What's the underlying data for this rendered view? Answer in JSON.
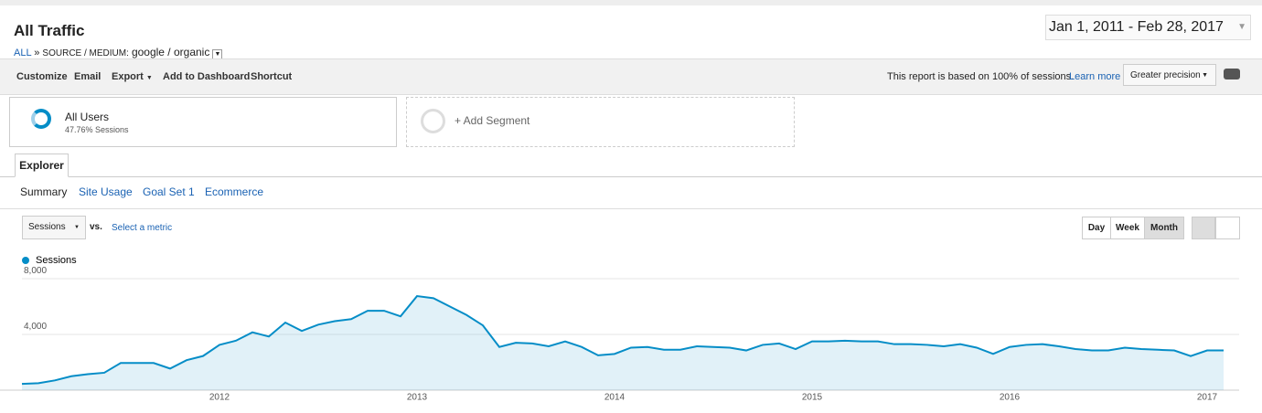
{
  "header": {
    "title": "All Traffic",
    "date_range": "Jan 1, 2011 - Feb 28, 2017",
    "breadcrumb": {
      "root": "ALL",
      "separator": "»",
      "dimension": "SOURCE / MEDIUM:",
      "value": "google / organic"
    }
  },
  "toolbar": {
    "buttons": [
      "Customize",
      "Email",
      "Export",
      "Add to Dashboard",
      "Shortcut"
    ],
    "notice": "This report is based on 100% of sessions.",
    "link": "Learn more",
    "precision": "Greater precision"
  },
  "segments": {
    "active": {
      "name": "All Users",
      "detail": "47.76% Sessions"
    },
    "add": "+ Add Segment"
  },
  "tabs": {
    "main": "Explorer",
    "sub": [
      "Summary",
      "Site Usage",
      "Goal Set 1",
      "Ecommerce"
    ]
  },
  "controls": {
    "metric": "Sessions",
    "vs": "vs.",
    "select": "Select a metric",
    "granularity": [
      "Day",
      "Week",
      "Month"
    ]
  },
  "chart_data": {
    "type": "line",
    "categories": [
      null,
      null,
      null,
      null,
      null,
      null,
      null,
      null,
      null,
      null,
      null,
      null,
      "2012",
      null,
      null,
      null,
      null,
      null,
      null,
      null,
      null,
      null,
      null,
      null,
      "2013",
      null,
      null,
      null,
      null,
      null,
      null,
      null,
      null,
      null,
      null,
      null,
      "2014",
      null,
      null,
      null,
      null,
      null,
      null,
      null,
      null,
      null,
      null,
      null,
      "2015",
      null,
      null,
      null,
      null,
      null,
      null,
      null,
      null,
      null,
      null,
      null,
      "2016",
      null,
      null,
      null,
      null,
      null,
      null,
      null,
      null,
      null,
      null,
      null,
      "2017",
      null
    ],
    "series": [
      {
        "name": "Sessions",
        "color": "#058dc7",
        "values": [
          450,
          500,
          700,
          1000,
          1150,
          1250,
          1950,
          1950,
          1950,
          1550,
          2150,
          2450,
          3250,
          3550,
          4150,
          3850,
          4850,
          4250,
          4700,
          4950,
          5100,
          5700,
          5700,
          5300,
          6750,
          6600,
          6000,
          5400,
          4650,
          3100,
          3400,
          3350,
          3150,
          3500,
          3100,
          2500,
          2600,
          3050,
          3100,
          2900,
          2900,
          3150,
          3100,
          3050,
          2850,
          3250,
          3350,
          2950,
          3500,
          3500,
          3550,
          3500,
          3500,
          3300,
          3300,
          3250,
          3150,
          3300,
          3050,
          2600,
          3100,
          3250,
          3300,
          3150,
          2950,
          2850,
          2850,
          3050,
          2950,
          2900,
          2850,
          2450,
          2850,
          2850
        ]
      }
    ],
    "ylim": [
      0,
      8000
    ],
    "yticks": [
      {
        "value": 4000,
        "label": "4,000"
      },
      {
        "value": 8000,
        "label": "8,000"
      }
    ],
    "grid": true
  }
}
